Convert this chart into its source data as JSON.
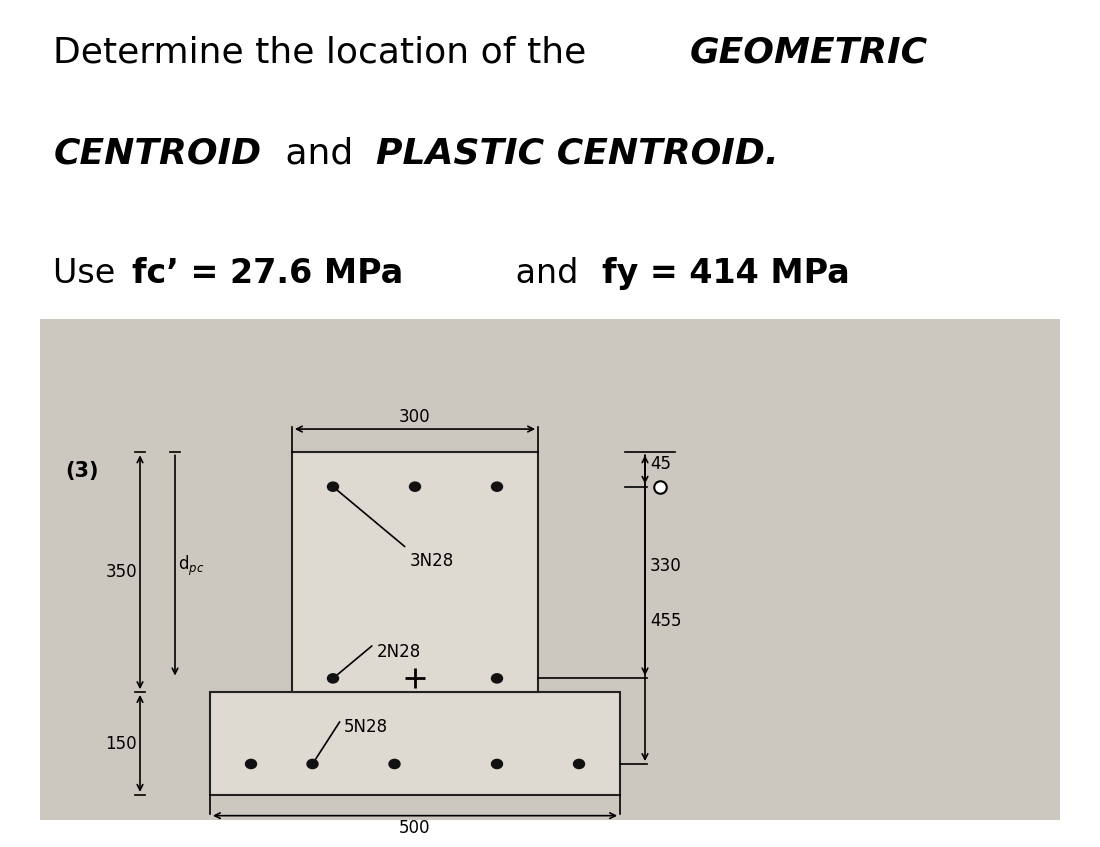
{
  "bg_color": "#ffffff",
  "diagram_bg": "#ccc8c0",
  "section_fill": "#dedad2",
  "title_normal_1": "Determine the location of the ",
  "title_bold_1": "GEOMETRIC",
  "title_bold_2": "CENTROID",
  "title_normal_2": " and ",
  "title_bold_3": "PLASTIC CENTROID.",
  "sub_normal_1": "Use ",
  "sub_bold_1": "fc’ = 27.6 MPa",
  "sub_normal_2": " and ",
  "sub_bold_2": "fy = 414 MPa",
  "label_num": "(3)",
  "dim_300": "300",
  "dim_45": "45",
  "dim_350": "350",
  "dim_dpc": "d$_{pc}$",
  "dim_330": "330",
  "dim_150": "150",
  "dim_455": "455",
  "dim_500": "500",
  "label_3N28": "3N28",
  "label_2N28": "2N28",
  "label_5N28": "5N28",
  "title_fontsize": 26,
  "sub_fontsize": 24,
  "diagram_fontsize": 12
}
